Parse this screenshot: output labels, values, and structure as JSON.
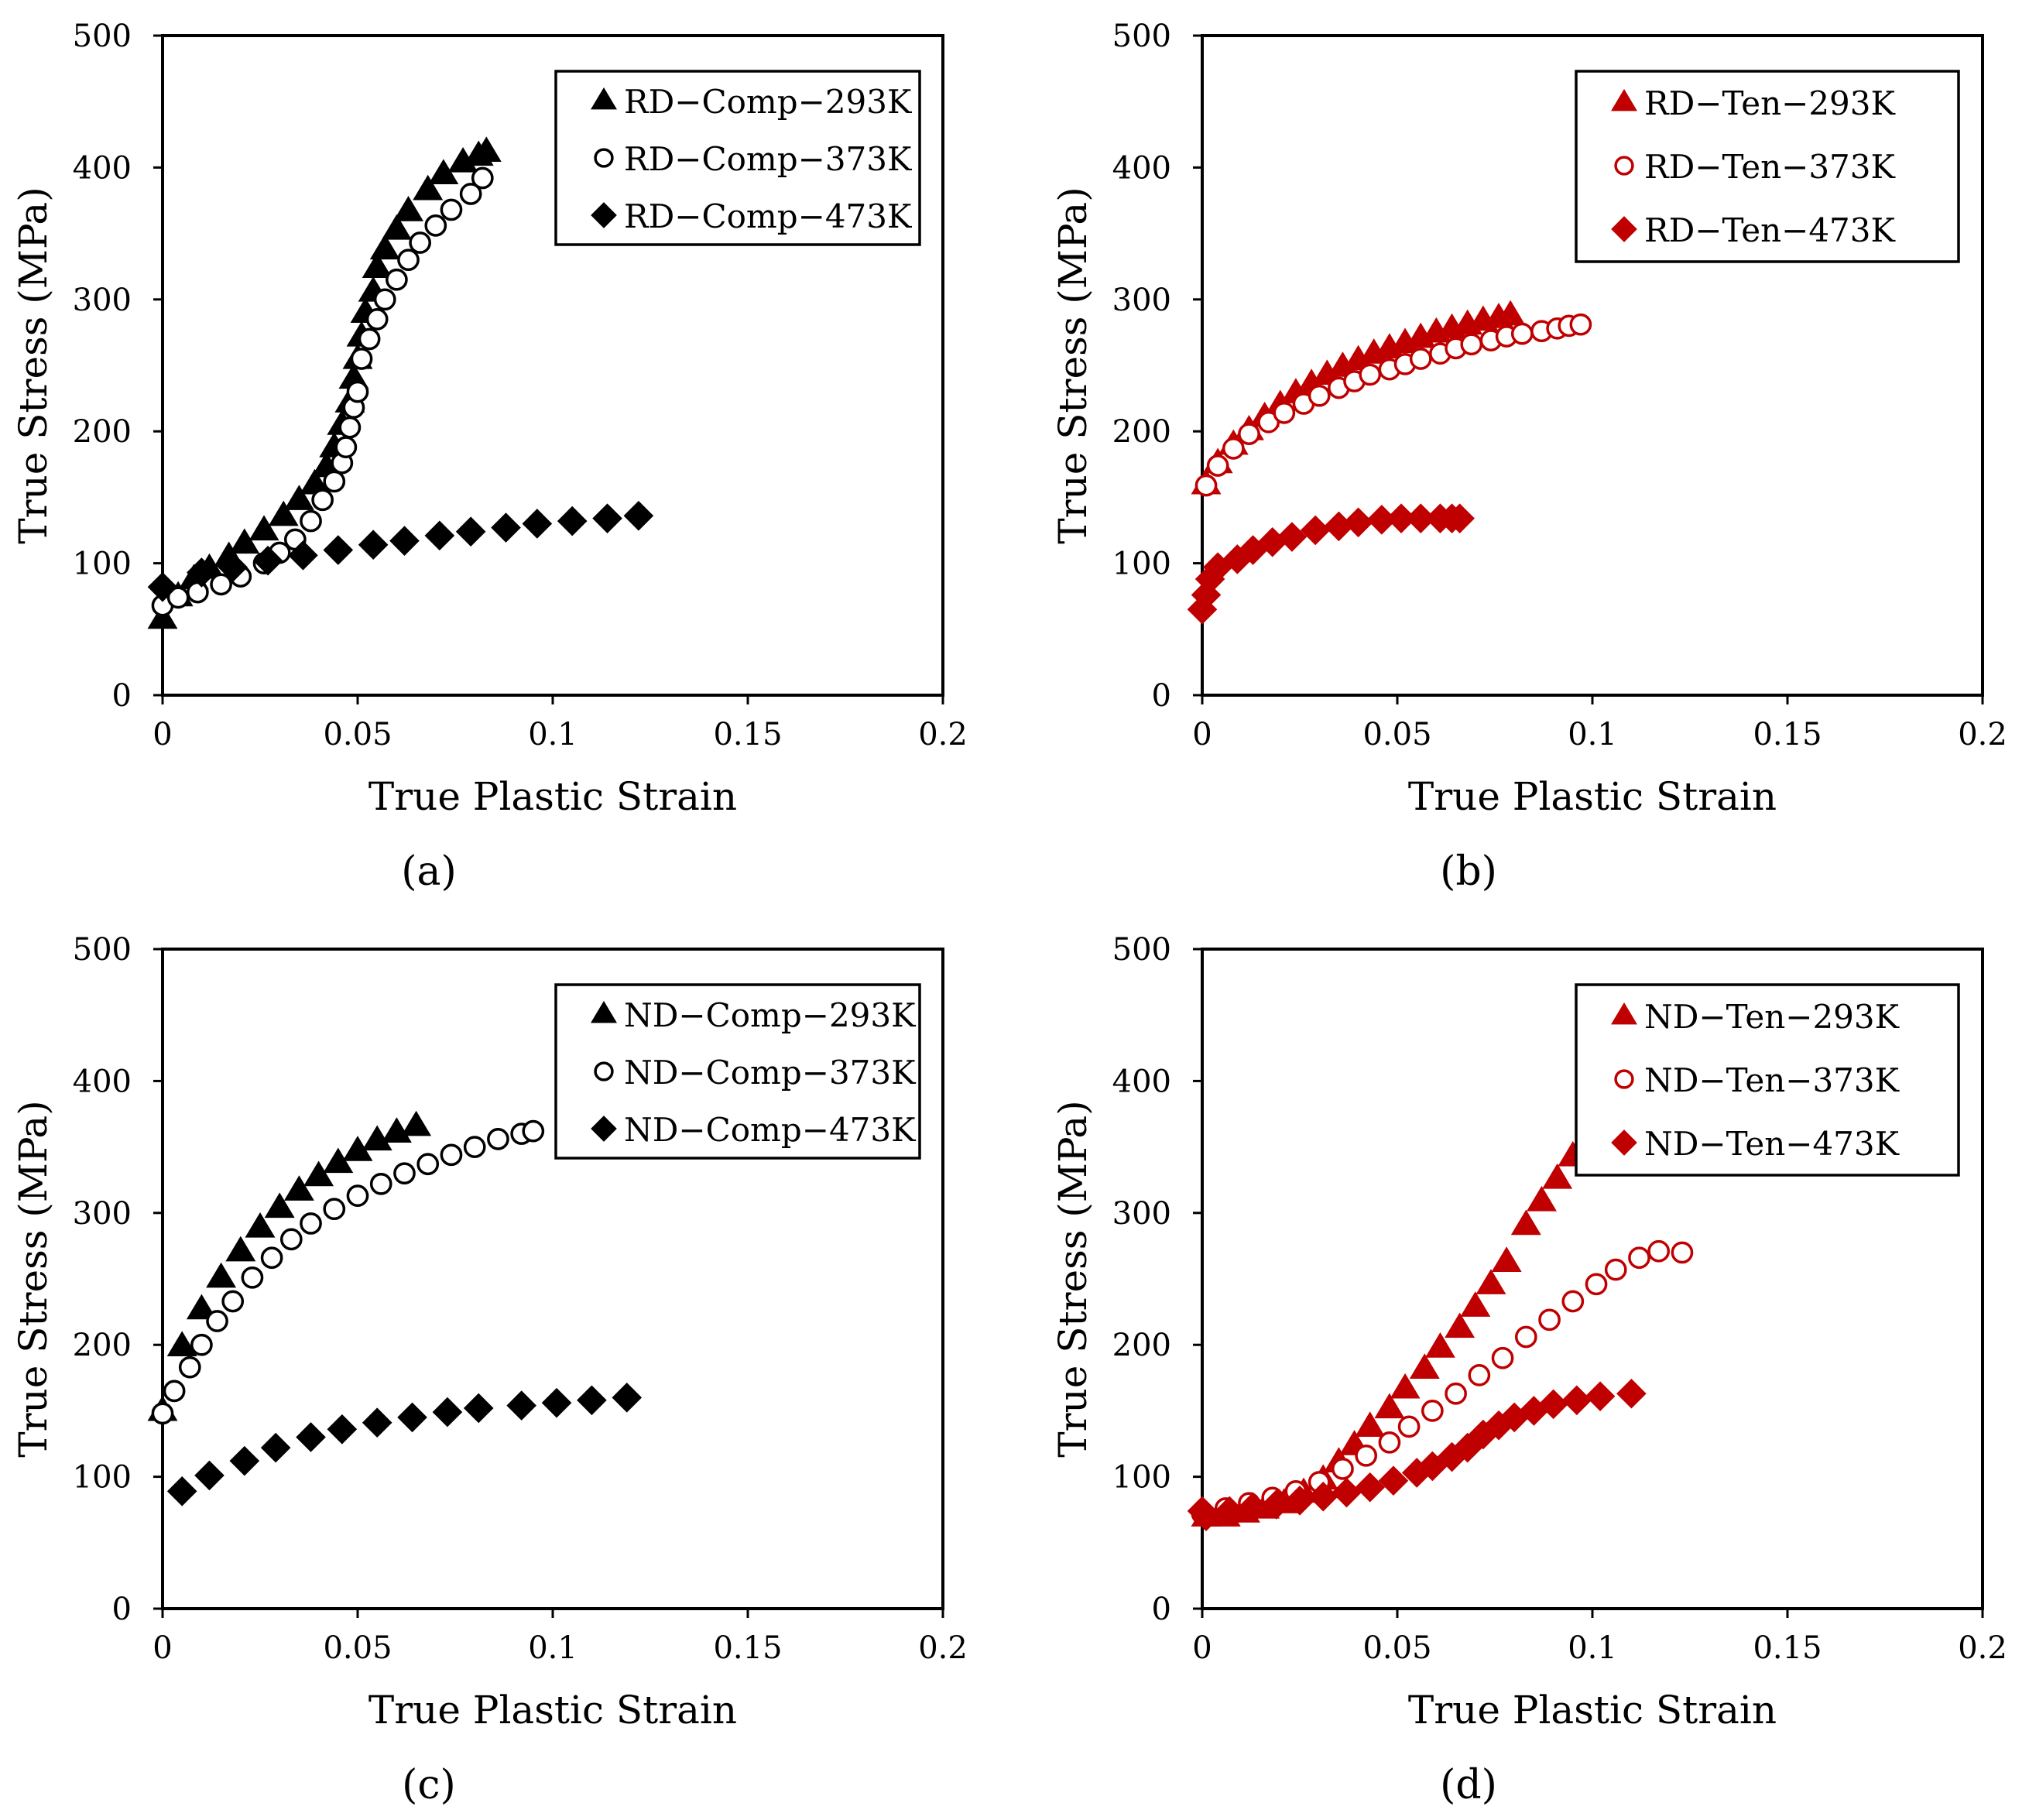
{
  "colors": {
    "black": "#000000",
    "red": "#C00000"
  },
  "chart_data": [
    {
      "type": "scatter",
      "panel_label": "(a)",
      "xlabel": "True Plastic Strain",
      "ylabel": "True Stress (MPa)",
      "xlim": [
        0,
        0.2
      ],
      "ylim": [
        0,
        500
      ],
      "x_ticks": [
        "0",
        "0.05",
        "0.1",
        "0.15",
        "0.2"
      ],
      "y_ticks": [
        "0",
        "100",
        "200",
        "300",
        "400",
        "500"
      ],
      "legend_position": "top-right",
      "series": [
        {
          "name": "RD−Comp−293K",
          "marker": "triangle",
          "filled": true,
          "color": "#000000",
          "x": [
            0.0,
            0.004,
            0.008,
            0.012,
            0.017,
            0.021,
            0.026,
            0.031,
            0.035,
            0.039,
            0.042,
            0.044,
            0.046,
            0.048,
            0.049,
            0.05,
            0.051,
            0.052,
            0.054,
            0.055,
            0.057,
            0.06,
            0.063,
            0.068,
            0.072,
            0.077,
            0.081,
            0.083
          ],
          "y": [
            58,
            75,
            88,
            96,
            105,
            115,
            125,
            136,
            148,
            160,
            173,
            188,
            205,
            222,
            240,
            255,
            272,
            290,
            306,
            324,
            338,
            353,
            367,
            383,
            395,
            404,
            409,
            412
          ]
        },
        {
          "name": "RD−Comp−373K",
          "marker": "circle",
          "filled": false,
          "color": "#000000",
          "x": [
            0.0,
            0.004,
            0.009,
            0.015,
            0.02,
            0.026,
            0.03,
            0.034,
            0.038,
            0.041,
            0.044,
            0.046,
            0.047,
            0.048,
            0.049,
            0.05,
            0.051,
            0.053,
            0.055,
            0.057,
            0.06,
            0.063,
            0.066,
            0.07,
            0.074,
            0.079,
            0.082
          ],
          "y": [
            68,
            74,
            78,
            84,
            90,
            100,
            108,
            118,
            132,
            148,
            162,
            176,
            188,
            203,
            218,
            230,
            255,
            270,
            285,
            300,
            315,
            330,
            343,
            356,
            368,
            380,
            392
          ]
        },
        {
          "name": "RD−Comp−473K",
          "marker": "diamond",
          "filled": true,
          "color": "#000000",
          "x": [
            0.0,
            0.01,
            0.018,
            0.027,
            0.036,
            0.045,
            0.054,
            0.062,
            0.071,
            0.079,
            0.088,
            0.096,
            0.105,
            0.114,
            0.122
          ],
          "y": [
            82,
            93,
            97,
            102,
            106,
            110,
            114,
            117,
            121,
            124,
            127,
            130,
            132,
            134,
            136
          ]
        }
      ]
    },
    {
      "type": "scatter",
      "panel_label": "(b)",
      "xlabel": "True Plastic Strain",
      "ylabel": "True Stress (MPa)",
      "xlim": [
        0,
        0.2
      ],
      "ylim": [
        0,
        500
      ],
      "x_ticks": [
        "0",
        "0.05",
        "0.1",
        "0.15",
        "0.2"
      ],
      "y_ticks": [
        "0",
        "100",
        "200",
        "300",
        "400",
        "500"
      ],
      "legend_position": "top-right",
      "series": [
        {
          "name": "RD−Ten−293K",
          "marker": "triangle",
          "filled": true,
          "color": "#C00000",
          "x": [
            0.001,
            0.004,
            0.008,
            0.012,
            0.016,
            0.02,
            0.024,
            0.028,
            0.032,
            0.036,
            0.04,
            0.044,
            0.048,
            0.052,
            0.056,
            0.06,
            0.064,
            0.068,
            0.072,
            0.076,
            0.079
          ],
          "y": [
            160,
            176,
            190,
            201,
            211,
            220,
            229,
            236,
            243,
            249,
            254,
            259,
            263,
            267,
            271,
            275,
            278,
            281,
            284,
            286,
            288
          ]
        },
        {
          "name": "RD−Ten−373K",
          "marker": "circle",
          "filled": false,
          "color": "#C00000",
          "x": [
            0.001,
            0.004,
            0.008,
            0.012,
            0.017,
            0.021,
            0.026,
            0.03,
            0.035,
            0.039,
            0.043,
            0.048,
            0.052,
            0.056,
            0.061,
            0.065,
            0.069,
            0.074,
            0.078,
            0.082,
            0.087,
            0.091,
            0.094,
            0.097
          ],
          "y": [
            159,
            174,
            187,
            198,
            207,
            214,
            221,
            227,
            233,
            238,
            243,
            247,
            251,
            255,
            259,
            263,
            266,
            269,
            272,
            274,
            276,
            278,
            280,
            281
          ]
        },
        {
          "name": "RD−Ten−473K",
          "marker": "diamond",
          "filled": true,
          "color": "#C00000",
          "x": [
            0.0,
            0.001,
            0.002,
            0.004,
            0.009,
            0.013,
            0.018,
            0.023,
            0.029,
            0.035,
            0.04,
            0.046,
            0.051,
            0.056,
            0.061,
            0.064,
            0.066
          ],
          "y": [
            65,
            76,
            88,
            97,
            103,
            110,
            116,
            120,
            125,
            128,
            131,
            133,
            134,
            134,
            134,
            134,
            134
          ]
        }
      ]
    },
    {
      "type": "scatter",
      "panel_label": "(c)",
      "xlabel": "True Plastic Strain",
      "ylabel": "True Stress (MPa)",
      "xlim": [
        0,
        0.2
      ],
      "ylim": [
        0,
        500
      ],
      "x_ticks": [
        "0",
        "0.05",
        "0.1",
        "0.15",
        "0.2"
      ],
      "y_ticks": [
        "0",
        "100",
        "200",
        "300",
        "400",
        "500"
      ],
      "legend_position": "top-right",
      "series": [
        {
          "name": "ND−Comp−293K",
          "marker": "triangle",
          "filled": true,
          "color": "#000000",
          "x": [
            0.0,
            0.005,
            0.01,
            0.015,
            0.02,
            0.025,
            0.03,
            0.035,
            0.04,
            0.045,
            0.05,
            0.055,
            0.06,
            0.065
          ],
          "y": [
            150,
            199,
            227,
            251,
            271,
            289,
            304,
            317,
            328,
            338,
            347,
            355,
            361,
            366
          ]
        },
        {
          "name": "ND−Comp−373K",
          "marker": "circle",
          "filled": false,
          "color": "#000000",
          "x": [
            0.0,
            0.003,
            0.007,
            0.01,
            0.014,
            0.018,
            0.023,
            0.028,
            0.033,
            0.038,
            0.044,
            0.05,
            0.056,
            0.062,
            0.068,
            0.074,
            0.08,
            0.086,
            0.092,
            0.095
          ],
          "y": [
            148,
            165,
            183,
            200,
            218,
            233,
            251,
            266,
            280,
            292,
            303,
            313,
            322,
            330,
            337,
            344,
            350,
            356,
            360,
            362
          ]
        },
        {
          "name": "ND−Comp−473K",
          "marker": "diamond",
          "filled": true,
          "color": "#000000",
          "x": [
            0.005,
            0.012,
            0.021,
            0.029,
            0.038,
            0.046,
            0.055,
            0.064,
            0.073,
            0.081,
            0.092,
            0.101,
            0.11,
            0.119
          ],
          "y": [
            89,
            101,
            112,
            122,
            130,
            136,
            141,
            145,
            149,
            152,
            154,
            156,
            158,
            160
          ]
        }
      ]
    },
    {
      "type": "scatter",
      "panel_label": "(d)",
      "xlabel": "True Plastic Strain",
      "ylabel": "True Stress (MPa)",
      "xlim": [
        0,
        0.2
      ],
      "ylim": [
        0,
        500
      ],
      "x_ticks": [
        "0",
        "0.05",
        "0.1",
        "0.15",
        "0.2"
      ],
      "y_ticks": [
        "0",
        "100",
        "200",
        "300",
        "400",
        "500"
      ],
      "legend_position": "top-right",
      "series": [
        {
          "name": "ND−Ten−293K",
          "marker": "triangle",
          "filled": true,
          "color": "#C00000",
          "x": [
            0.001,
            0.006,
            0.011,
            0.016,
            0.021,
            0.026,
            0.031,
            0.035,
            0.039,
            0.043,
            0.048,
            0.052,
            0.057,
            0.061,
            0.066,
            0.07,
            0.074,
            0.078,
            0.083,
            0.087,
            0.091,
            0.095,
            0.099,
            0.103,
            0.107,
            0.11
          ],
          "y": [
            70,
            70,
            73,
            76,
            80,
            88,
            98,
            111,
            124,
            138,
            152,
            167,
            182,
            198,
            213,
            229,
            246,
            263,
            291,
            309,
            326,
            343,
            358,
            373,
            378,
            380
          ]
        },
        {
          "name": "ND−Ten−373K",
          "marker": "circle",
          "filled": false,
          "color": "#C00000",
          "x": [
            0.0,
            0.006,
            0.012,
            0.018,
            0.024,
            0.03,
            0.036,
            0.042,
            0.048,
            0.053,
            0.059,
            0.065,
            0.071,
            0.077,
            0.083,
            0.089,
            0.095,
            0.101,
            0.106,
            0.112,
            0.117,
            0.123
          ],
          "y": [
            72,
            76,
            80,
            84,
            89,
            96,
            106,
            116,
            126,
            138,
            150,
            163,
            177,
            190,
            206,
            219,
            233,
            246,
            257,
            266,
            271,
            270
          ]
        },
        {
          "name": "ND−Ten−473K",
          "marker": "diamond",
          "filled": true,
          "color": "#C00000",
          "x": [
            0.0,
            0.001,
            0.007,
            0.013,
            0.019,
            0.025,
            0.031,
            0.037,
            0.043,
            0.049,
            0.055,
            0.059,
            0.064,
            0.068,
            0.072,
            0.076,
            0.08,
            0.085,
            0.09,
            0.096,
            0.102,
            0.11
          ],
          "y": [
            74,
            70,
            74,
            77,
            79,
            82,
            85,
            88,
            92,
            97,
            103,
            108,
            115,
            122,
            132,
            139,
            145,
            150,
            155,
            158,
            161,
            163
          ]
        }
      ]
    }
  ]
}
